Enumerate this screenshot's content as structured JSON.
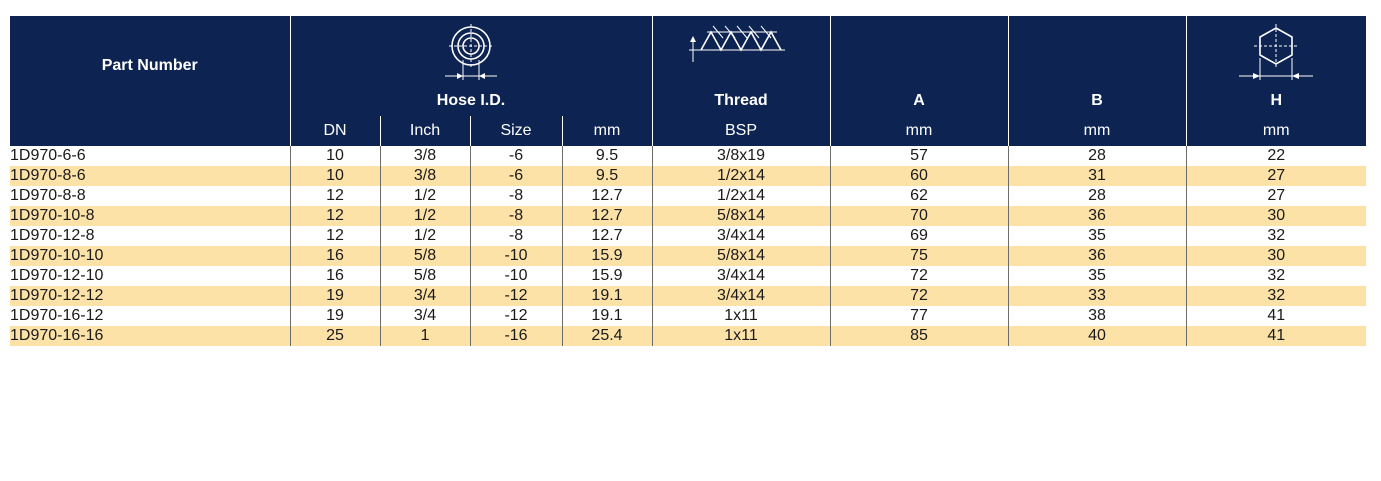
{
  "header": {
    "part_number": "Part Number",
    "hose_id": "Hose I.D.",
    "thread": "Thread",
    "a": "A",
    "b": "B",
    "h": "H",
    "units": {
      "dn": "DN",
      "inch": "Inch",
      "size": "Size",
      "mm": "mm",
      "bsp": "BSP",
      "a_unit": "mm",
      "b_unit": "mm",
      "h_unit": "mm"
    },
    "icons": [
      "hose-id-icon",
      "thread-icon",
      "hex-icon"
    ]
  },
  "colors": {
    "header_bg": "#0d2352",
    "alt_row": "#fde2a8"
  },
  "rows": [
    {
      "part": "1D970-6-6",
      "dn": "10",
      "inch": "3/8",
      "size": "-6",
      "mm": "9.5",
      "thread": "3/8x19",
      "a": "57",
      "b": "28",
      "h": "22"
    },
    {
      "part": "1D970-8-6",
      "dn": "10",
      "inch": "3/8",
      "size": "-6",
      "mm": "9.5",
      "thread": "1/2x14",
      "a": "60",
      "b": "31",
      "h": "27"
    },
    {
      "part": "1D970-8-8",
      "dn": "12",
      "inch": "1/2",
      "size": "-8",
      "mm": "12.7",
      "thread": "1/2x14",
      "a": "62",
      "b": "28",
      "h": "27"
    },
    {
      "part": "1D970-10-8",
      "dn": "12",
      "inch": "1/2",
      "size": "-8",
      "mm": "12.7",
      "thread": "5/8x14",
      "a": "70",
      "b": "36",
      "h": "30"
    },
    {
      "part": "1D970-12-8",
      "dn": "12",
      "inch": "1/2",
      "size": "-8",
      "mm": "12.7",
      "thread": "3/4x14",
      "a": "69",
      "b": "35",
      "h": "32"
    },
    {
      "part": "1D970-10-10",
      "dn": "16",
      "inch": "5/8",
      "size": "-10",
      "mm": "15.9",
      "thread": "5/8x14",
      "a": "75",
      "b": "36",
      "h": "30"
    },
    {
      "part": "1D970-12-10",
      "dn": "16",
      "inch": "5/8",
      "size": "-10",
      "mm": "15.9",
      "thread": "3/4x14",
      "a": "72",
      "b": "35",
      "h": "32"
    },
    {
      "part": "1D970-12-12",
      "dn": "19",
      "inch": "3/4",
      "size": "-12",
      "mm": "19.1",
      "thread": "3/4x14",
      "a": "72",
      "b": "33",
      "h": "32"
    },
    {
      "part": "1D970-16-12",
      "dn": "19",
      "inch": "3/4",
      "size": "-12",
      "mm": "19.1",
      "thread": "1x11",
      "a": "77",
      "b": "38",
      "h": "41"
    },
    {
      "part": "1D970-16-16",
      "dn": "25",
      "inch": "1",
      "size": "-16",
      "mm": "25.4",
      "thread": "1x11",
      "a": "85",
      "b": "40",
      "h": "41"
    }
  ]
}
